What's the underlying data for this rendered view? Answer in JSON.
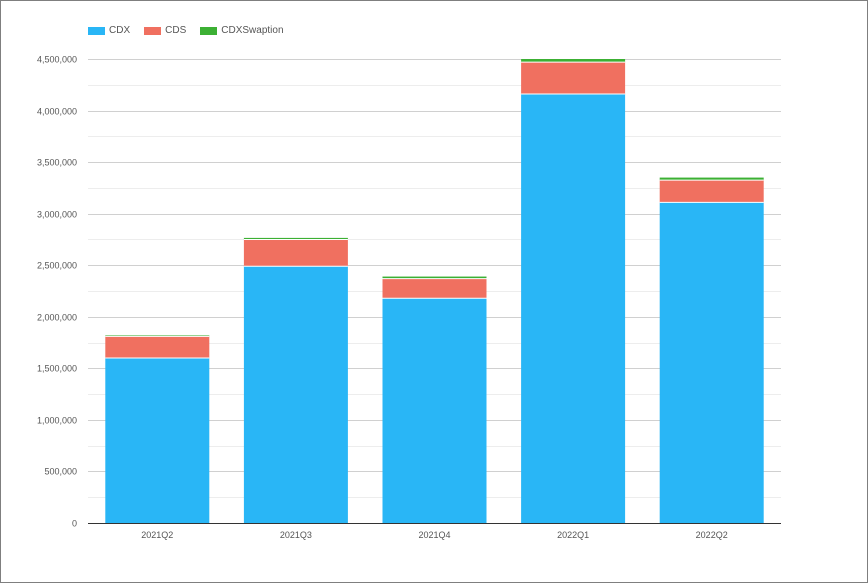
{
  "chart_data": {
    "type": "bar",
    "stacked": true,
    "title": "",
    "xlabel": "",
    "ylabel": "",
    "categories": [
      "2021Q2",
      "2021Q3",
      "2021Q4",
      "2022Q1",
      "2022Q2"
    ],
    "series": [
      {
        "name": "CDX",
        "color": "#29b6f6",
        "values": [
          1600000,
          2490000,
          2180000,
          4160000,
          3110000
        ]
      },
      {
        "name": "CDS",
        "color": "#f07060",
        "values": [
          210000,
          260000,
          190000,
          310000,
          215000
        ]
      },
      {
        "name": "CDXSwaption",
        "color": "#3cb034",
        "values": [
          10000,
          15000,
          20000,
          30000,
          25000
        ]
      }
    ],
    "ylim": [
      0,
      4500000
    ],
    "yticks": [
      0,
      500000,
      1000000,
      1500000,
      2000000,
      2500000,
      3000000,
      3500000,
      4000000,
      4500000
    ],
    "ytick_labels": [
      "0",
      "500,000",
      "1,000,000",
      "1,500,000",
      "2,000,000",
      "2,500,000",
      "3,000,000",
      "3,500,000",
      "4,000,000",
      "4,500,000"
    ],
    "grid": true,
    "legend_position": "top-left"
  }
}
